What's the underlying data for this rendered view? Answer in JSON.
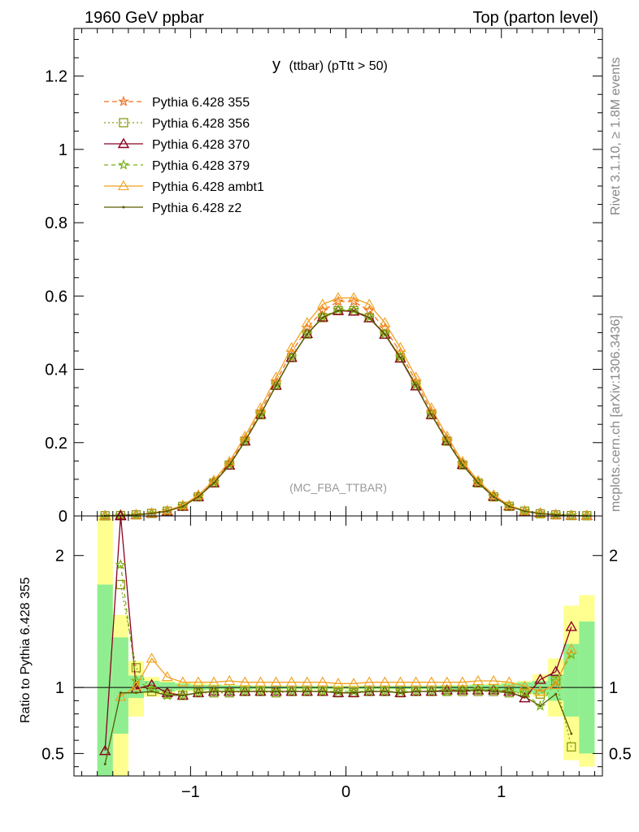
{
  "header": {
    "left": "1960 GeV ppbar",
    "right": "Top (parton level)"
  },
  "side_labels": {
    "rivet": "Rivet 3.1.10, ≥ 1.8M events",
    "mcplots": "mcplots.cern.ch [arXiv:1306.3436]"
  },
  "chart_data": {
    "type": "line",
    "title_main": "y",
    "title_sub": "(ttbar) (pTtt > 50)",
    "watermark": "(MC_FBA_TTBAR)",
    "xlabel": "",
    "ylabel": "",
    "xlim": [
      -1.75,
      1.65
    ],
    "ylim": [
      0,
      1.33
    ],
    "x_ticks": [
      -1,
      0,
      1
    ],
    "x_tick_labels": [
      "−1",
      "0",
      "1"
    ],
    "y_ticks": [
      0,
      0.2,
      0.4,
      0.6,
      0.8,
      1,
      1.2
    ],
    "y_tick_labels": [
      "0",
      "0.2",
      "0.4",
      "0.6",
      "0.8",
      "1",
      "1.2"
    ],
    "x": [
      -1.55,
      -1.45,
      -1.35,
      -1.25,
      -1.15,
      -1.05,
      -0.95,
      -0.85,
      -0.75,
      -0.65,
      -0.55,
      -0.45,
      -0.35,
      -0.25,
      -0.15,
      -0.05,
      0.05,
      0.15,
      0.25,
      0.35,
      0.45,
      0.55,
      0.65,
      0.75,
      0.85,
      0.95,
      1.05,
      1.15,
      1.25,
      1.35,
      1.45,
      1.55
    ],
    "series": [
      {
        "name": "Pythia 6.428 355",
        "color": "#f07020",
        "dash": "6,4",
        "marker": "star",
        "values": [
          0.0005,
          0.001,
          0.003,
          0.007,
          0.014,
          0.028,
          0.054,
          0.093,
          0.143,
          0.21,
          0.285,
          0.367,
          0.446,
          0.512,
          0.56,
          0.585,
          0.585,
          0.56,
          0.512,
          0.446,
          0.367,
          0.285,
          0.21,
          0.143,
          0.093,
          0.054,
          0.028,
          0.014,
          0.007,
          0.003,
          0.001,
          0.0005
        ]
      },
      {
        "name": "Pythia 6.428 356",
        "color": "#8a9a10",
        "dash": "2,3",
        "marker": "square",
        "values": [
          0.0005,
          0.001,
          0.003,
          0.007,
          0.013,
          0.026,
          0.052,
          0.09,
          0.139,
          0.204,
          0.276,
          0.356,
          0.432,
          0.496,
          0.541,
          0.56,
          0.56,
          0.541,
          0.496,
          0.432,
          0.356,
          0.276,
          0.204,
          0.139,
          0.09,
          0.052,
          0.026,
          0.013,
          0.006,
          0.003,
          0.001,
          0.0005
        ]
      },
      {
        "name": "Pythia 6.428 370",
        "color": "#8b0020",
        "dash": "",
        "marker": "triangle",
        "values": [
          0.0003,
          0.002,
          0.003,
          0.007,
          0.013,
          0.026,
          0.052,
          0.09,
          0.138,
          0.204,
          0.277,
          0.356,
          0.432,
          0.497,
          0.542,
          0.56,
          0.558,
          0.54,
          0.495,
          0.43,
          0.354,
          0.276,
          0.205,
          0.14,
          0.091,
          0.053,
          0.027,
          0.013,
          0.007,
          0.003,
          0.001,
          0.0005
        ]
      },
      {
        "name": "Pythia 6.428 379",
        "color": "#78b010",
        "dash": "5,4",
        "marker": "star",
        "values": [
          0.0004,
          0.002,
          0.003,
          0.007,
          0.013,
          0.026,
          0.052,
          0.091,
          0.139,
          0.205,
          0.277,
          0.357,
          0.433,
          0.497,
          0.543,
          0.563,
          0.562,
          0.542,
          0.497,
          0.433,
          0.357,
          0.277,
          0.205,
          0.14,
          0.091,
          0.053,
          0.027,
          0.013,
          0.006,
          0.004,
          0.001,
          0.0005
        ]
      },
      {
        "name": "Pythia 6.428 ambt1",
        "color": "#f0a020",
        "dash": "",
        "marker": "triangle-open",
        "values": [
          0.0003,
          0.001,
          0.003,
          0.008,
          0.015,
          0.029,
          0.057,
          0.097,
          0.148,
          0.217,
          0.294,
          0.378,
          0.459,
          0.527,
          0.577,
          0.595,
          0.595,
          0.577,
          0.527,
          0.459,
          0.378,
          0.294,
          0.217,
          0.148,
          0.096,
          0.057,
          0.029,
          0.014,
          0.007,
          0.003,
          0.001,
          0.0005
        ]
      },
      {
        "name": "Pythia 6.428 z2",
        "color": "#5a5a00",
        "dash": "",
        "marker": "dot",
        "values": [
          0.0002,
          0.001,
          0.003,
          0.007,
          0.013,
          0.026,
          0.052,
          0.09,
          0.139,
          0.204,
          0.276,
          0.356,
          0.432,
          0.496,
          0.541,
          0.56,
          0.56,
          0.541,
          0.496,
          0.432,
          0.356,
          0.276,
          0.204,
          0.139,
          0.09,
          0.052,
          0.026,
          0.013,
          0.006,
          0.003,
          0.001,
          0.0003
        ]
      }
    ],
    "ratio": {
      "ylabel": "Ratio to Pythia 6.428 355",
      "ylim": [
        0.33,
        2.3
      ],
      "y_ticks": [
        0.5,
        1,
        2
      ],
      "y_tick_labels": [
        "0.5",
        "1",
        "2"
      ],
      "reference_band_green": [
        [
          0.3,
          1.78
        ],
        [
          0.65,
          1.38
        ],
        [
          0.92,
          1.09
        ],
        [
          0.96,
          1.05
        ],
        [
          0.97,
          1.04
        ],
        [
          0.98,
          1.03
        ],
        [
          0.98,
          1.02
        ],
        [
          0.985,
          1.02
        ],
        [
          0.985,
          1.015
        ],
        [
          0.985,
          1.015
        ],
        [
          0.99,
          1.012
        ],
        [
          0.99,
          1.01
        ],
        [
          0.99,
          1.01
        ],
        [
          0.99,
          1.01
        ],
        [
          0.99,
          1.01
        ],
        [
          0.99,
          1.01
        ],
        [
          0.99,
          1.01
        ],
        [
          0.99,
          1.01
        ],
        [
          0.99,
          1.01
        ],
        [
          0.99,
          1.01
        ],
        [
          0.99,
          1.01
        ],
        [
          0.99,
          1.012
        ],
        [
          0.985,
          1.015
        ],
        [
          0.985,
          1.015
        ],
        [
          0.985,
          1.02
        ],
        [
          0.98,
          1.02
        ],
        [
          0.97,
          1.03
        ],
        [
          0.96,
          1.04
        ],
        [
          0.95,
          1.05
        ],
        [
          0.9,
          1.1
        ],
        [
          0.78,
          1.33
        ],
        [
          0.5,
          1.5
        ]
      ],
      "reference_band_yellow": [
        [
          0.3,
          2.3
        ],
        [
          0.3,
          1.55
        ],
        [
          0.78,
          1.2
        ],
        [
          0.93,
          1.08
        ],
        [
          0.95,
          1.05
        ],
        [
          0.97,
          1.04
        ],
        [
          0.97,
          1.03
        ],
        [
          0.98,
          1.025
        ],
        [
          0.98,
          1.02
        ],
        [
          0.98,
          1.02
        ],
        [
          0.985,
          1.015
        ],
        [
          0.985,
          1.015
        ],
        [
          0.985,
          1.015
        ],
        [
          0.985,
          1.015
        ],
        [
          0.985,
          1.015
        ],
        [
          0.985,
          1.015
        ],
        [
          0.985,
          1.015
        ],
        [
          0.985,
          1.015
        ],
        [
          0.985,
          1.015
        ],
        [
          0.985,
          1.015
        ],
        [
          0.985,
          1.015
        ],
        [
          0.985,
          1.015
        ],
        [
          0.98,
          1.02
        ],
        [
          0.98,
          1.02
        ],
        [
          0.98,
          1.025
        ],
        [
          0.97,
          1.03
        ],
        [
          0.96,
          1.04
        ],
        [
          0.95,
          1.05
        ],
        [
          0.93,
          1.1
        ],
        [
          0.78,
          1.22
        ],
        [
          0.45,
          1.62
        ],
        [
          0.4,
          1.7
        ]
      ],
      "series": [
        {
          "name": "Pythia 6.428 356",
          "values": [
            null,
            1.78,
            1.15,
            0.97,
            0.95,
            0.94,
            0.96,
            0.96,
            0.96,
            0.97,
            0.97,
            0.96,
            0.97,
            0.97,
            0.97,
            0.96,
            0.96,
            0.97,
            0.97,
            0.96,
            0.97,
            0.97,
            0.97,
            0.97,
            0.97,
            0.97,
            0.96,
            0.96,
            0.95,
            1.05,
            0.55,
            null
          ]
        },
        {
          "name": "Pythia 6.428 370",
          "values": [
            0.52,
            2.3,
            0.99,
            1.02,
            0.96,
            0.94,
            0.96,
            0.97,
            0.97,
            0.97,
            0.97,
            0.97,
            0.97,
            0.97,
            0.97,
            0.96,
            0.96,
            0.97,
            0.97,
            0.96,
            0.97,
            0.97,
            0.98,
            0.98,
            0.98,
            0.98,
            0.97,
            0.92,
            1.06,
            1.12,
            1.46,
            null
          ]
        },
        {
          "name": "Pythia 6.428 379",
          "values": [
            null,
            1.93,
            1.05,
            0.99,
            0.94,
            0.94,
            0.96,
            0.97,
            0.97,
            0.97,
            0.97,
            0.97,
            0.97,
            0.97,
            0.97,
            0.97,
            0.97,
            0.97,
            0.97,
            0.97,
            0.97,
            0.97,
            0.97,
            0.98,
            0.98,
            0.98,
            0.97,
            0.96,
            0.86,
            1.05,
            1.25,
            null
          ]
        },
        {
          "name": "Pythia 6.428 ambt1",
          "values": [
            null,
            0.93,
            1.01,
            1.22,
            1.08,
            1.04,
            1.04,
            1.04,
            1.05,
            1.04,
            1.04,
            1.04,
            1.04,
            1.04,
            1.04,
            1.03,
            1.03,
            1.04,
            1.04,
            1.04,
            1.04,
            1.04,
            1.04,
            1.04,
            1.05,
            1.05,
            1.04,
            1.01,
            0.97,
            1.02,
            1.29,
            null
          ]
        },
        {
          "name": "Pythia 6.428 z2",
          "values": [
            0.42,
            0.96,
            0.96,
            0.97,
            0.94,
            0.94,
            0.96,
            0.97,
            0.97,
            0.97,
            0.97,
            0.97,
            0.97,
            0.97,
            0.97,
            0.96,
            0.96,
            0.97,
            0.97,
            0.96,
            0.97,
            0.97,
            0.97,
            0.97,
            0.98,
            0.97,
            0.96,
            0.93,
            0.86,
            0.95,
            0.65,
            null
          ]
        }
      ]
    }
  }
}
